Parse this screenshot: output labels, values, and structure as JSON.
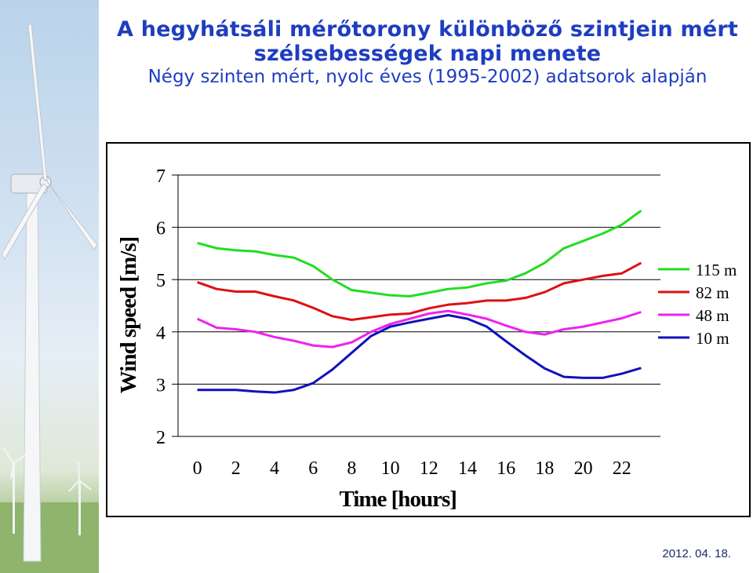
{
  "header": {
    "title": "A hegyhátsáli mérőtorony különböző szintjein mért szélsebességek napi menete",
    "subtitle": "Négy szinten mért, nyolc éves (1995-2002) adatsorok alapján"
  },
  "footer": {
    "date": "2012. 04. 18."
  },
  "chart_data": {
    "type": "line",
    "title": "",
    "xlabel": "Time [hours]",
    "ylabel": "Wind speed [m/s]",
    "xlim": [
      -1,
      24
    ],
    "ylim": [
      2,
      7
    ],
    "xticks": [
      0,
      2,
      4,
      6,
      8,
      10,
      12,
      14,
      16,
      18,
      20,
      22
    ],
    "yticks": [
      2,
      3,
      4,
      5,
      6,
      7
    ],
    "grid": "horizontal",
    "legend": "right",
    "x": [
      0,
      1,
      2,
      3,
      4,
      5,
      6,
      7,
      8,
      9,
      10,
      11,
      12,
      13,
      14,
      15,
      16,
      17,
      18,
      19,
      20,
      21,
      22,
      23
    ],
    "series": [
      {
        "name": "115 m",
        "color": "#22dd22",
        "values": [
          5.7,
          5.6,
          5.56,
          5.54,
          5.47,
          5.42,
          5.26,
          5.0,
          4.8,
          4.75,
          4.7,
          4.68,
          4.75,
          4.82,
          4.85,
          4.93,
          4.98,
          5.12,
          5.32,
          5.6,
          5.74,
          5.88,
          6.05,
          6.32
        ]
      },
      {
        "name": "82 m",
        "color": "#dd1111",
        "values": [
          4.95,
          4.82,
          4.77,
          4.77,
          4.68,
          4.6,
          4.46,
          4.3,
          4.23,
          4.28,
          4.33,
          4.35,
          4.45,
          4.52,
          4.55,
          4.6,
          4.6,
          4.65,
          4.76,
          4.93,
          5.0,
          5.07,
          5.12,
          5.32
        ]
      },
      {
        "name": "48 m",
        "color": "#ee22ee",
        "values": [
          4.25,
          4.08,
          4.05,
          4.0,
          3.9,
          3.83,
          3.74,
          3.71,
          3.8,
          4.0,
          4.15,
          4.25,
          4.35,
          4.4,
          4.33,
          4.25,
          4.12,
          4.0,
          3.95,
          4.05,
          4.1,
          4.18,
          4.26,
          4.38
        ]
      },
      {
        "name": "10 m",
        "color": "#1111bb",
        "values": [
          2.89,
          2.89,
          2.89,
          2.86,
          2.84,
          2.89,
          3.02,
          3.28,
          3.6,
          3.92,
          4.1,
          4.18,
          4.25,
          4.32,
          4.25,
          4.1,
          3.82,
          3.55,
          3.3,
          3.14,
          3.12,
          3.12,
          3.2,
          3.31
        ]
      }
    ]
  }
}
